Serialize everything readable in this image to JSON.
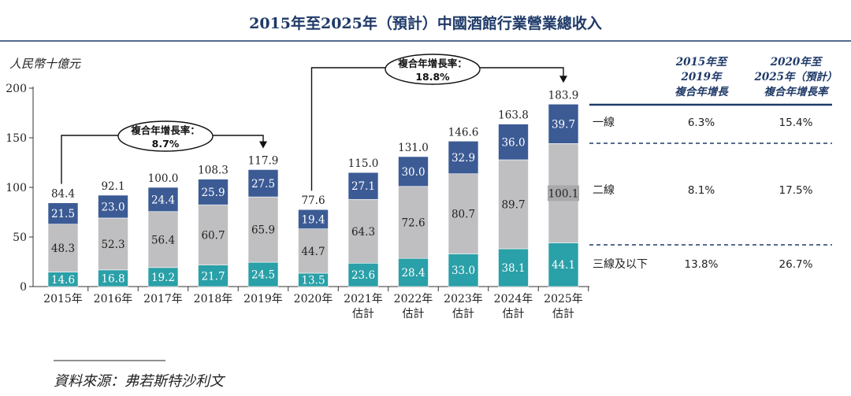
{
  "chart_data": {
    "type": "bar",
    "stacked": true,
    "title": "2015年至2025年（預計）中國酒館行業營業總收入",
    "ylabel": "人民幣十億元",
    "ylim": [
      0,
      200
    ],
    "yticks": [
      "0",
      "50",
      "100",
      "150",
      "200"
    ],
    "categories": [
      "2015年",
      "2016年",
      "2017年",
      "2018年",
      "2019年",
      "2020年",
      "2021年\n估計",
      "2022年\n估計",
      "2023年\n估計",
      "2024年\n估計",
      "2025年\n估計"
    ],
    "category_lines": [
      [
        "2015年"
      ],
      [
        "2016年"
      ],
      [
        "2017年"
      ],
      [
        "2018年"
      ],
      [
        "2019年"
      ],
      [
        "2020年"
      ],
      [
        "2021年",
        "估計"
      ],
      [
        "2022年",
        "估計"
      ],
      [
        "2023年",
        "估計"
      ],
      [
        "2024年",
        "估計"
      ],
      [
        "2025年",
        "估計"
      ]
    ],
    "series": [
      {
        "name": "三線及以下",
        "color": "#2aa0a8",
        "values": [
          14.6,
          16.8,
          19.2,
          21.7,
          24.5,
          13.5,
          23.6,
          28.4,
          33.0,
          38.1,
          44.1
        ],
        "labels": [
          "14.6",
          "16.8",
          "19.2",
          "21.7",
          "24.5",
          "13.5",
          "23.6",
          "28.4",
          "33.0",
          "38.1",
          "44.1"
        ]
      },
      {
        "name": "二線",
        "color": "#bfbfc1",
        "values": [
          48.3,
          52.3,
          56.4,
          60.7,
          65.9,
          44.7,
          64.3,
          72.6,
          80.7,
          89.7,
          100.1
        ],
        "labels": [
          "48.3",
          "52.3",
          "56.4",
          "60.7",
          "65.9",
          "44.7",
          "64.3",
          "72.6",
          "80.7",
          "89.7",
          "100.1"
        ]
      },
      {
        "name": "一線",
        "color": "#3c5b95",
        "values": [
          21.5,
          23.0,
          24.4,
          25.9,
          27.5,
          19.4,
          27.1,
          30.0,
          32.9,
          36.0,
          39.7
        ],
        "labels": [
          "21.5",
          "23.0",
          "24.4",
          "25.9",
          "27.5",
          "19.4",
          "27.1",
          "30.0",
          "32.9",
          "36.0",
          "39.7"
        ]
      }
    ],
    "totals": [
      "84.4",
      "92.1",
      "100.0",
      "108.3",
      "117.9",
      "77.6",
      "115.0",
      "131.0",
      "146.6",
      "163.8",
      "183.9"
    ],
    "annotations": [
      {
        "label": "複合年增長率：",
        "value": "8.7%",
        "from": "2015年",
        "to": "2019年"
      },
      {
        "label": "複合年增長率：",
        "value": "18.8%",
        "from": "2020年",
        "to": "2025年"
      }
    ],
    "cagr_table": {
      "headers": [
        [
          "2015年至",
          "2019年",
          "複合年增長"
        ],
        [
          "2020年至",
          "2025年（預計）",
          "複合年增長率"
        ]
      ],
      "rows": [
        {
          "name": "一線",
          "v1": "6.3%",
          "v2": "15.4%"
        },
        {
          "name": "二線",
          "v1": "8.1%",
          "v2": "17.5%"
        },
        {
          "name": "三線及以下",
          "v1": "13.8%",
          "v2": "26.7%"
        }
      ]
    }
  },
  "source": "資料來源：弗若斯特沙利文"
}
